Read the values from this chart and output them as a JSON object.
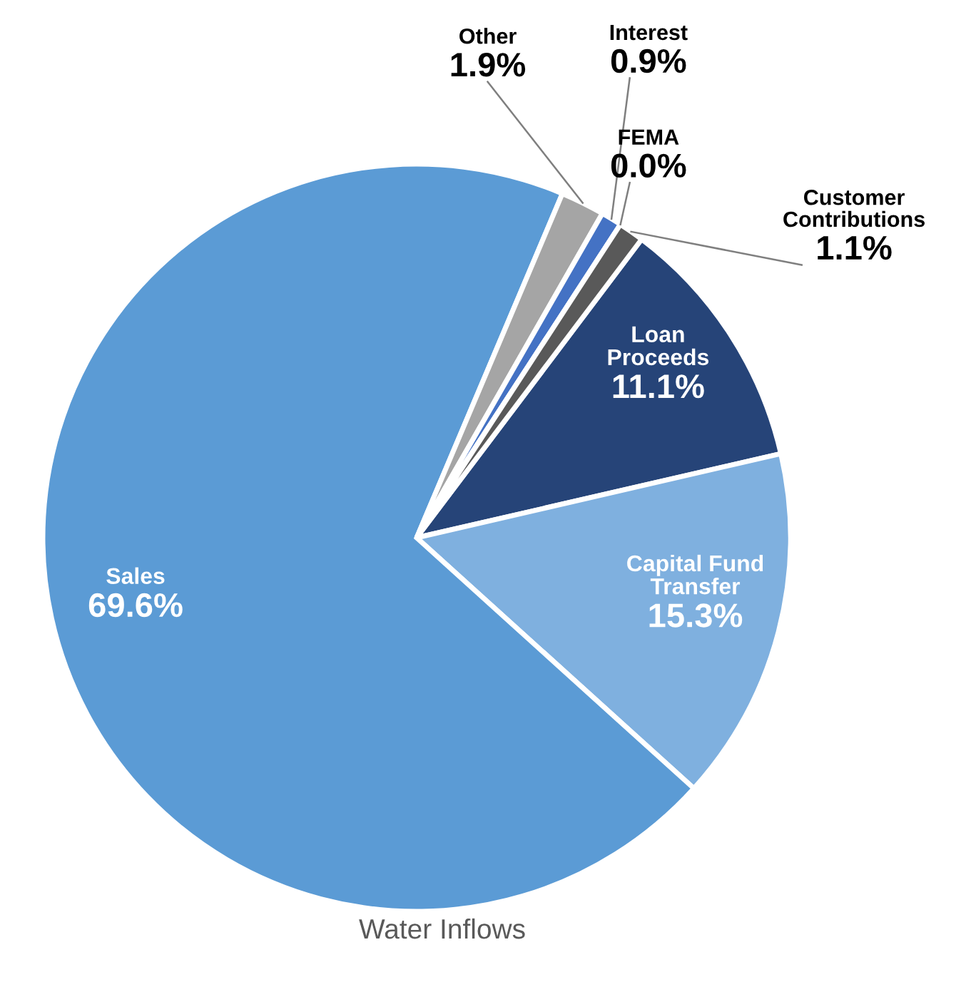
{
  "chart_data": {
    "type": "pie",
    "title": "Water Inflows",
    "categories": [
      "Loan Proceeds",
      "Capital Fund Transfer",
      "Sales",
      "Other",
      "Interest",
      "FEMA",
      "Customer Contributions"
    ],
    "values": [
      11.1,
      15.3,
      69.6,
      1.9,
      0.9,
      0.0,
      1.1
    ],
    "colors": [
      "#264478",
      "#7fb0df",
      "#5b9bd5",
      "#a5a5a5",
      "#4472c4",
      "#7f7f7f",
      "#595959"
    ],
    "value_labels": [
      "11.1%",
      "15.3%",
      "69.6%",
      "1.9%",
      "0.9%",
      "0.0%",
      "1.1%"
    ]
  }
}
